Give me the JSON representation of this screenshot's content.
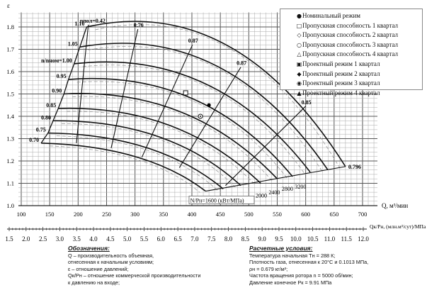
{
  "chart_data": {
    "type": "line",
    "ylabel": "ε",
    "xlabel": "Q, м³/мин",
    "xlim": [
      100,
      700
    ],
    "ylim": [
      1.0,
      1.8
    ],
    "xticks": [
      "100",
      "150",
      "200",
      "250",
      "300",
      "350",
      "400",
      "450",
      "500",
      "550",
      "600",
      "650",
      "700"
    ],
    "yticks": [
      "1.0",
      "1.1",
      "1.2",
      "1.3",
      "1.4",
      "1.5",
      "1.6",
      "1.7",
      "1.8"
    ],
    "x2label": "Qк/Pн, (млн.м³/сут)/МПа",
    "x2ticks": [
      "1.5",
      "2.0",
      "2.5",
      "3.0",
      "3.5",
      "4.0",
      "4.5",
      "5.0",
      "5.5",
      "6.0",
      "6.5",
      "7.0",
      "7.5",
      "8.0",
      "8.5",
      "9.0",
      "9.5",
      "10.0",
      "10.5",
      "11.0",
      "11.5",
      "12.0"
    ],
    "grid": true,
    "speed_lines": [
      {
        "label": "0.70",
        "points": [
          [
            135,
            1.28
          ],
          [
            300,
            1.22
          ],
          [
            424,
            1.065
          ]
        ]
      },
      {
        "label": "0.75",
        "points": [
          [
            147,
            1.325
          ],
          [
            320,
            1.26
          ],
          [
            455,
            1.075
          ]
        ]
      },
      {
        "label": "0.80",
        "points": [
          [
            156,
            1.38
          ],
          [
            340,
            1.31
          ],
          [
            486,
            1.09
          ]
        ]
      },
      {
        "label": "0.85",
        "points": [
          [
            165,
            1.435
          ],
          [
            360,
            1.36
          ],
          [
            521,
            1.1
          ]
        ]
      },
      {
        "label": "0.90",
        "points": [
          [
            175,
            1.5
          ],
          [
            380,
            1.42
          ],
          [
            550,
            1.12
          ]
        ]
      },
      {
        "label": "0.95",
        "points": [
          [
            183,
            1.565
          ],
          [
            400,
            1.48
          ],
          [
            577,
            1.13
          ]
        ]
      },
      {
        "label": "n/nном=1.00",
        "points": [
          [
            193,
            1.635
          ],
          [
            420,
            1.55
          ],
          [
            608,
            1.15
          ]
        ]
      },
      {
        "label": "1.05",
        "points": [
          [
            203,
            1.71
          ],
          [
            440,
            1.63
          ],
          [
            639,
            1.16
          ]
        ]
      },
      {
        "label": "1.10",
        "points": [
          [
            215,
            1.8
          ],
          [
            460,
            1.72
          ],
          [
            670,
            1.175
          ]
        ]
      }
    ],
    "efficiency_lines": [
      {
        "label": "ηпол=0.42",
        "points": [
          [
            197,
            1.28
          ],
          [
            218,
            1.81
          ]
        ]
      },
      {
        "label": "0.76",
        "points": [
          [
            258,
            1.257
          ],
          [
            305,
            1.79
          ]
        ]
      },
      {
        "label": "0.87",
        "points": [
          [
            312,
            1.216
          ],
          [
            401,
            1.72
          ]
        ]
      },
      {
        "label": "0.87",
        "points": [
          [
            378,
            1.17
          ],
          [
            486,
            1.62
          ]
        ]
      },
      {
        "label": "0.85",
        "points": [
          [
            459,
            1.09
          ],
          [
            600,
            1.445
          ]
        ]
      },
      {
        "label": "0.796",
        "points": [
          [
            424,
            1.065
          ],
          [
            670,
            1.175
          ]
        ]
      }
    ],
    "power_labels": [
      "N/Pн=1600 (кВт/МПа)",
      "2000",
      "2400",
      "2800",
      "3200"
    ],
    "markers": [
      {
        "series": "Номинальный режим",
        "x": 430,
        "y": 1.45,
        "symbol": "filled-circle"
      },
      {
        "series": "Пропускная способность 1 квартал",
        "x": 389,
        "y": 1.505,
        "symbol": "open-square"
      },
      {
        "series": "Проектный режим 3 квартал",
        "x": 415,
        "y": 1.4,
        "symbol": "circle-dot"
      }
    ],
    "legend": {
      "position": "top-right",
      "items": [
        {
          "symbol": "●",
          "label": "Номинальный режим"
        },
        {
          "symbol": "□",
          "label": "Пропускная способность 1 квартал"
        },
        {
          "symbol": "◇",
          "label": "Пропускная способность 2 квартал"
        },
        {
          "symbol": "○",
          "label": "Пропускная способность 3 квартал"
        },
        {
          "symbol": "△",
          "label": "Пропускная способность 4 квартал"
        },
        {
          "symbol": "▣",
          "label": "Проектный режим 1 квартал"
        },
        {
          "symbol": "◆",
          "label": "Проектный режим 2 квартал"
        },
        {
          "symbol": "◉",
          "label": "Проектный режим 3 квартал"
        },
        {
          "symbol": "▲",
          "label": "Проектный режим 4 квартал"
        }
      ]
    }
  },
  "notes": {
    "left_title": "Обозначения:",
    "left_lines": [
      "Q – производительность объемная,",
      "отнесенная к начальным условиям;",
      "ε – отношение давлений;",
      "Qк/Pн – отношение коммерческой производительности",
      "к давлению на входе;"
    ],
    "right_title": "Расчетные условия:",
    "right_lines": [
      "Температура начальная Tн = 288 К;",
      "Плотность газа, отнесенная к 20°С и 0.1013 МПа,",
      "ρн = 0.679 кг/м³;",
      "Частота вращения ротора n = 5000 об/мин;",
      "Давление конечное Pк = 9.91 МПа"
    ]
  }
}
